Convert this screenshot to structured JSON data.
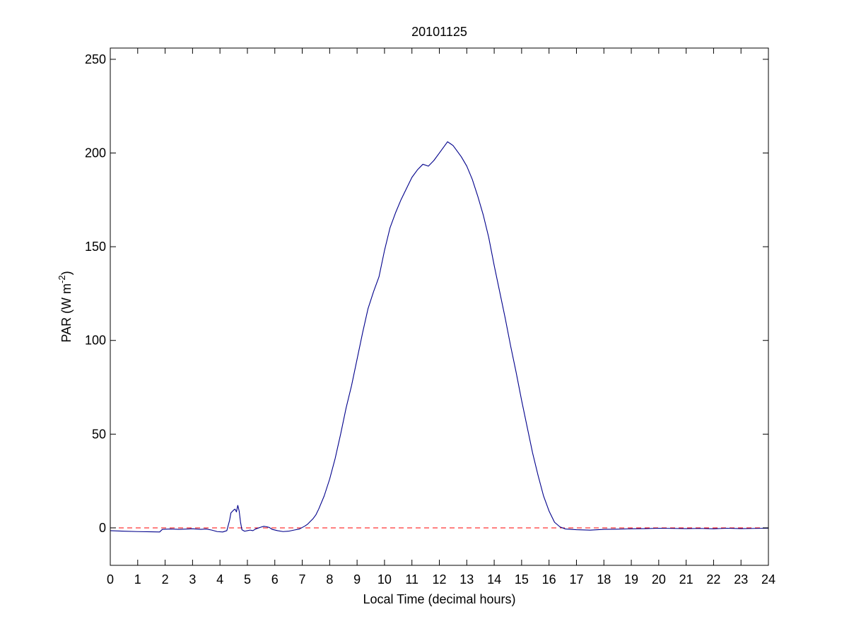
{
  "chart_data": {
    "type": "line",
    "title": "20101125",
    "xlabel": "Local Time (decimal hours)",
    "ylabel_main": "PAR (W m",
    "ylabel_sup": "-2",
    "ylabel_close": ")",
    "xlim": [
      0,
      24
    ],
    "ylim": [
      -20,
      256
    ],
    "xticks": [
      0,
      1,
      2,
      3,
      4,
      5,
      6,
      7,
      8,
      9,
      10,
      11,
      12,
      13,
      14,
      15,
      16,
      17,
      18,
      19,
      20,
      21,
      22,
      23,
      24
    ],
    "yticks": [
      0,
      50,
      100,
      150,
      200,
      250
    ],
    "grid": false,
    "colors": {
      "series": "#00008b",
      "reference": "#ff0000",
      "axes": "#000000"
    },
    "reference_line": {
      "y": 0,
      "style": "dashed"
    },
    "series": [
      {
        "x": [
          0,
          0.5,
          1.0,
          1.5,
          1.8,
          1.9,
          2.2,
          2.5,
          3.0,
          3.3,
          3.5,
          3.7,
          3.9,
          4.1,
          4.25,
          4.35,
          4.4,
          4.5,
          4.55,
          4.6,
          4.65,
          4.7,
          4.75,
          4.8,
          4.9,
          5.0,
          5.1,
          5.2,
          5.3,
          5.5,
          5.6,
          5.7,
          5.8,
          5.9,
          6.1,
          6.3,
          6.5,
          6.7,
          6.9,
          7.0,
          7.1,
          7.2,
          7.3,
          7.4,
          7.5,
          7.6,
          7.8,
          8.0,
          8.2,
          8.4,
          8.6,
          8.8,
          9.0,
          9.2,
          9.4,
          9.6,
          9.8,
          10.0,
          10.2,
          10.4,
          10.6,
          10.8,
          11.0,
          11.2,
          11.4,
          11.6,
          11.8,
          12.0,
          12.15,
          12.3,
          12.4,
          12.5,
          12.6,
          12.8,
          13.0,
          13.2,
          13.4,
          13.6,
          13.8,
          14.0,
          14.2,
          14.4,
          14.6,
          14.8,
          15.0,
          15.2,
          15.4,
          15.6,
          15.8,
          16.0,
          16.2,
          16.4,
          16.6,
          16.8,
          17.0,
          17.5,
          18.0,
          18.5,
          19.0,
          19.5,
          20.0,
          20.5,
          21.0,
          21.5,
          22.0,
          22.5,
          23.0,
          23.5,
          24.0
        ],
        "y": [
          -1.5,
          -1.8,
          -2.0,
          -2.1,
          -2.2,
          -0.8,
          -0.6,
          -0.8,
          -0.5,
          -0.8,
          -0.6,
          -1.2,
          -2.0,
          -2.2,
          -1.5,
          4.0,
          8.0,
          9.5,
          10.0,
          8.5,
          12.0,
          9.0,
          3.0,
          -1.0,
          -1.8,
          -1.5,
          -1.2,
          -1.5,
          -0.6,
          0.4,
          0.8,
          0.6,
          0.2,
          -0.8,
          -1.5,
          -2.0,
          -1.8,
          -1.2,
          -0.6,
          0.2,
          1.0,
          2.0,
          3.5,
          5.0,
          7.0,
          10.0,
          17.0,
          26.0,
          37.0,
          50.0,
          64.0,
          76.0,
          90.0,
          104.0,
          117.0,
          126.0,
          134.0,
          148.0,
          160.0,
          168.0,
          175.0,
          181.0,
          187.0,
          191.0,
          194.0,
          193.0,
          196.0,
          200.0,
          203.0,
          206.0,
          205.0,
          204.0,
          202.0,
          198.0,
          193.0,
          186.0,
          177.0,
          167.0,
          155.0,
          140.0,
          126.0,
          112.0,
          97.0,
          83.0,
          68.0,
          54.0,
          40.0,
          28.0,
          17.0,
          9.0,
          3.0,
          0.5,
          -0.6,
          -0.8,
          -1.0,
          -1.2,
          -0.8,
          -0.7,
          -0.5,
          -0.4,
          -0.2,
          -0.3,
          -0.4,
          -0.3,
          -0.5,
          -0.2,
          -0.4,
          -0.3,
          -0.2
        ]
      }
    ]
  }
}
